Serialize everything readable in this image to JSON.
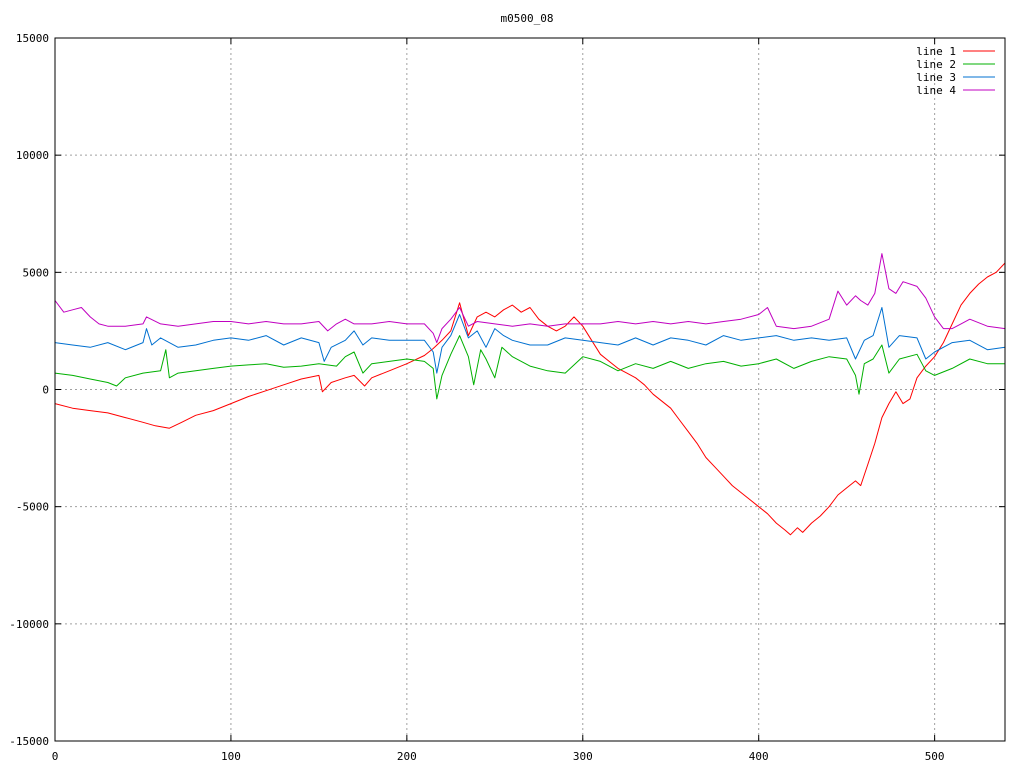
{
  "chart_data": {
    "type": "line",
    "title": "m0500_08",
    "xlabel": "",
    "ylabel": "",
    "xlim": [
      0,
      540
    ],
    "ylim": [
      -15000,
      15000
    ],
    "x_ticks": [
      0,
      100,
      200,
      300,
      400,
      500
    ],
    "y_ticks": [
      -15000,
      -10000,
      -5000,
      0,
      5000,
      10000,
      15000
    ],
    "grid": true,
    "legend_position": "top-right",
    "series": [
      {
        "name": "line 1",
        "color": "#ff0000",
        "points": [
          [
            0,
            -600
          ],
          [
            10,
            -800
          ],
          [
            20,
            -900
          ],
          [
            30,
            -1000
          ],
          [
            40,
            -1200
          ],
          [
            50,
            -1400
          ],
          [
            57,
            -1550
          ],
          [
            65,
            -1650
          ],
          [
            72,
            -1400
          ],
          [
            80,
            -1100
          ],
          [
            90,
            -900
          ],
          [
            100,
            -600
          ],
          [
            110,
            -300
          ],
          [
            120,
            -50
          ],
          [
            130,
            200
          ],
          [
            140,
            450
          ],
          [
            150,
            600
          ],
          [
            152,
            -100
          ],
          [
            157,
            300
          ],
          [
            165,
            500
          ],
          [
            170,
            600
          ],
          [
            176,
            150
          ],
          [
            180,
            500
          ],
          [
            190,
            800
          ],
          [
            200,
            1100
          ],
          [
            210,
            1450
          ],
          [
            215,
            1750
          ],
          [
            220,
            2100
          ],
          [
            225,
            2500
          ],
          [
            230,
            3700
          ],
          [
            235,
            2300
          ],
          [
            240,
            3100
          ],
          [
            245,
            3300
          ],
          [
            250,
            3100
          ],
          [
            255,
            3400
          ],
          [
            260,
            3600
          ],
          [
            265,
            3300
          ],
          [
            270,
            3500
          ],
          [
            275,
            3000
          ],
          [
            280,
            2700
          ],
          [
            285,
            2500
          ],
          [
            290,
            2700
          ],
          [
            295,
            3100
          ],
          [
            300,
            2700
          ],
          [
            305,
            2100
          ],
          [
            310,
            1500
          ],
          [
            315,
            1200
          ],
          [
            320,
            900
          ],
          [
            325,
            700
          ],
          [
            330,
            500
          ],
          [
            335,
            200
          ],
          [
            340,
            -200
          ],
          [
            345,
            -500
          ],
          [
            350,
            -800
          ],
          [
            355,
            -1300
          ],
          [
            360,
            -1800
          ],
          [
            365,
            -2300
          ],
          [
            370,
            -2900
          ],
          [
            375,
            -3300
          ],
          [
            380,
            -3700
          ],
          [
            385,
            -4100
          ],
          [
            390,
            -4400
          ],
          [
            395,
            -4700
          ],
          [
            400,
            -5000
          ],
          [
            405,
            -5300
          ],
          [
            410,
            -5700
          ],
          [
            415,
            -6000
          ],
          [
            418,
            -6200
          ],
          [
            422,
            -5900
          ],
          [
            425,
            -6100
          ],
          [
            430,
            -5700
          ],
          [
            435,
            -5400
          ],
          [
            440,
            -5000
          ],
          [
            445,
            -4500
          ],
          [
            450,
            -4200
          ],
          [
            455,
            -3900
          ],
          [
            458,
            -4100
          ],
          [
            462,
            -3200
          ],
          [
            466,
            -2300
          ],
          [
            470,
            -1200
          ],
          [
            474,
            -600
          ],
          [
            478,
            -100
          ],
          [
            482,
            -600
          ],
          [
            486,
            -400
          ],
          [
            490,
            500
          ],
          [
            495,
            1000
          ],
          [
            500,
            1400
          ],
          [
            505,
            2000
          ],
          [
            510,
            2800
          ],
          [
            515,
            3600
          ],
          [
            520,
            4100
          ],
          [
            525,
            4500
          ],
          [
            530,
            4800
          ],
          [
            535,
            5000
          ],
          [
            540,
            5400
          ]
        ]
      },
      {
        "name": "line 2",
        "color": "#00b000",
        "points": [
          [
            0,
            700
          ],
          [
            10,
            600
          ],
          [
            20,
            450
          ],
          [
            30,
            300
          ],
          [
            35,
            150
          ],
          [
            40,
            500
          ],
          [
            50,
            700
          ],
          [
            60,
            800
          ],
          [
            63,
            1700
          ],
          [
            65,
            500
          ],
          [
            70,
            700
          ],
          [
            80,
            800
          ],
          [
            90,
            900
          ],
          [
            100,
            1000
          ],
          [
            110,
            1050
          ],
          [
            120,
            1100
          ],
          [
            130,
            950
          ],
          [
            140,
            1000
          ],
          [
            150,
            1100
          ],
          [
            160,
            1000
          ],
          [
            165,
            1400
          ],
          [
            170,
            1600
          ],
          [
            175,
            700
          ],
          [
            180,
            1100
          ],
          [
            190,
            1200
          ],
          [
            200,
            1300
          ],
          [
            210,
            1200
          ],
          [
            215,
            900
          ],
          [
            217,
            -400
          ],
          [
            220,
            600
          ],
          [
            225,
            1500
          ],
          [
            230,
            2300
          ],
          [
            235,
            1400
          ],
          [
            238,
            200
          ],
          [
            242,
            1700
          ],
          [
            245,
            1300
          ],
          [
            250,
            500
          ],
          [
            254,
            1800
          ],
          [
            260,
            1400
          ],
          [
            270,
            1000
          ],
          [
            280,
            800
          ],
          [
            290,
            700
          ],
          [
            300,
            1400
          ],
          [
            310,
            1200
          ],
          [
            320,
            800
          ],
          [
            330,
            1100
          ],
          [
            340,
            900
          ],
          [
            350,
            1200
          ],
          [
            360,
            900
          ],
          [
            370,
            1100
          ],
          [
            380,
            1200
          ],
          [
            390,
            1000
          ],
          [
            400,
            1100
          ],
          [
            410,
            1300
          ],
          [
            420,
            900
          ],
          [
            430,
            1200
          ],
          [
            440,
            1400
          ],
          [
            450,
            1300
          ],
          [
            455,
            600
          ],
          [
            457,
            -200
          ],
          [
            460,
            1100
          ],
          [
            465,
            1300
          ],
          [
            470,
            1900
          ],
          [
            474,
            700
          ],
          [
            480,
            1300
          ],
          [
            490,
            1500
          ],
          [
            495,
            800
          ],
          [
            500,
            600
          ],
          [
            510,
            900
          ],
          [
            520,
            1300
          ],
          [
            530,
            1100
          ],
          [
            540,
            1100
          ]
        ]
      },
      {
        "name": "line 3",
        "color": "#0070d0",
        "points": [
          [
            0,
            2000
          ],
          [
            10,
            1900
          ],
          [
            20,
            1800
          ],
          [
            30,
            2000
          ],
          [
            40,
            1700
          ],
          [
            50,
            2000
          ],
          [
            52,
            2600
          ],
          [
            55,
            1900
          ],
          [
            60,
            2200
          ],
          [
            70,
            1800
          ],
          [
            80,
            1900
          ],
          [
            90,
            2100
          ],
          [
            100,
            2200
          ],
          [
            110,
            2100
          ],
          [
            120,
            2300
          ],
          [
            130,
            1900
          ],
          [
            140,
            2200
          ],
          [
            150,
            2000
          ],
          [
            153,
            1200
          ],
          [
            157,
            1800
          ],
          [
            165,
            2100
          ],
          [
            170,
            2500
          ],
          [
            175,
            1900
          ],
          [
            180,
            2200
          ],
          [
            190,
            2100
          ],
          [
            200,
            2100
          ],
          [
            210,
            2100
          ],
          [
            215,
            1600
          ],
          [
            217,
            700
          ],
          [
            220,
            1800
          ],
          [
            225,
            2300
          ],
          [
            230,
            3200
          ],
          [
            235,
            2200
          ],
          [
            240,
            2500
          ],
          [
            245,
            1800
          ],
          [
            250,
            2600
          ],
          [
            255,
            2300
          ],
          [
            260,
            2100
          ],
          [
            270,
            1900
          ],
          [
            280,
            1900
          ],
          [
            290,
            2200
          ],
          [
            300,
            2100
          ],
          [
            310,
            2000
          ],
          [
            320,
            1900
          ],
          [
            330,
            2200
          ],
          [
            340,
            1900
          ],
          [
            350,
            2200
          ],
          [
            360,
            2100
          ],
          [
            370,
            1900
          ],
          [
            380,
            2300
          ],
          [
            390,
            2100
          ],
          [
            400,
            2200
          ],
          [
            410,
            2300
          ],
          [
            420,
            2100
          ],
          [
            430,
            2200
          ],
          [
            440,
            2100
          ],
          [
            450,
            2200
          ],
          [
            455,
            1300
          ],
          [
            460,
            2100
          ],
          [
            465,
            2300
          ],
          [
            470,
            3500
          ],
          [
            474,
            1800
          ],
          [
            480,
            2300
          ],
          [
            490,
            2200
          ],
          [
            495,
            1300
          ],
          [
            500,
            1600
          ],
          [
            510,
            2000
          ],
          [
            520,
            2100
          ],
          [
            530,
            1700
          ],
          [
            540,
            1800
          ]
        ]
      },
      {
        "name": "line 4",
        "color": "#c000c0",
        "points": [
          [
            0,
            3800
          ],
          [
            5,
            3300
          ],
          [
            10,
            3400
          ],
          [
            15,
            3500
          ],
          [
            20,
            3100
          ],
          [
            25,
            2800
          ],
          [
            30,
            2700
          ],
          [
            40,
            2700
          ],
          [
            50,
            2800
          ],
          [
            52,
            3100
          ],
          [
            60,
            2800
          ],
          [
            70,
            2700
          ],
          [
            80,
            2800
          ],
          [
            90,
            2900
          ],
          [
            100,
            2900
          ],
          [
            110,
            2800
          ],
          [
            120,
            2900
          ],
          [
            130,
            2800
          ],
          [
            140,
            2800
          ],
          [
            150,
            2900
          ],
          [
            155,
            2500
          ],
          [
            160,
            2800
          ],
          [
            165,
            3000
          ],
          [
            170,
            2800
          ],
          [
            180,
            2800
          ],
          [
            190,
            2900
          ],
          [
            200,
            2800
          ],
          [
            210,
            2800
          ],
          [
            215,
            2400
          ],
          [
            217,
            2000
          ],
          [
            220,
            2600
          ],
          [
            225,
            3000
          ],
          [
            230,
            3500
          ],
          [
            235,
            2700
          ],
          [
            240,
            2900
          ],
          [
            250,
            2800
          ],
          [
            260,
            2700
          ],
          [
            270,
            2800
          ],
          [
            280,
            2700
          ],
          [
            290,
            2800
          ],
          [
            300,
            2800
          ],
          [
            310,
            2800
          ],
          [
            320,
            2900
          ],
          [
            330,
            2800
          ],
          [
            340,
            2900
          ],
          [
            350,
            2800
          ],
          [
            360,
            2900
          ],
          [
            370,
            2800
          ],
          [
            380,
            2900
          ],
          [
            390,
            3000
          ],
          [
            400,
            3200
          ],
          [
            405,
            3500
          ],
          [
            410,
            2700
          ],
          [
            420,
            2600
          ],
          [
            430,
            2700
          ],
          [
            440,
            3000
          ],
          [
            445,
            4200
          ],
          [
            450,
            3600
          ],
          [
            455,
            4000
          ],
          [
            458,
            3800
          ],
          [
            462,
            3600
          ],
          [
            466,
            4100
          ],
          [
            470,
            5800
          ],
          [
            474,
            4300
          ],
          [
            478,
            4100
          ],
          [
            482,
            4600
          ],
          [
            490,
            4400
          ],
          [
            495,
            3900
          ],
          [
            500,
            3100
          ],
          [
            505,
            2600
          ],
          [
            510,
            2600
          ],
          [
            515,
            2800
          ],
          [
            520,
            3000
          ],
          [
            530,
            2700
          ],
          [
            540,
            2600
          ]
        ]
      }
    ]
  }
}
